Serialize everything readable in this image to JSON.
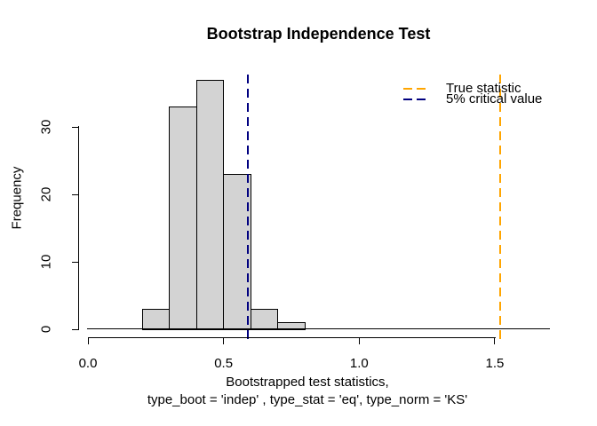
{
  "chart_data": {
    "type": "histogram",
    "title": "Bootstrap Independence Test",
    "xlabel_line1": "Bootstrapped test statistics,",
    "xlabel_line2": "type_boot = 'indep' , type_stat = 'eq', type_norm = 'KS'",
    "ylabel": "Frequency",
    "xlim": [
      0,
      1.7
    ],
    "ylim": [
      0,
      37
    ],
    "grid": false,
    "bar_fill": "#d3d3d3",
    "bar_border": "#000000",
    "bins": [
      {
        "from": 0.2,
        "to": 0.3,
        "count": 3
      },
      {
        "from": 0.3,
        "to": 0.4,
        "count": 33
      },
      {
        "from": 0.4,
        "to": 0.5,
        "count": 37
      },
      {
        "from": 0.5,
        "to": 0.6,
        "count": 23
      },
      {
        "from": 0.6,
        "to": 0.7,
        "count": 3
      },
      {
        "from": 0.7,
        "to": 0.8,
        "count": 1
      }
    ],
    "x_ticks": [
      {
        "value": 0.0,
        "label": "0.0"
      },
      {
        "value": 0.5,
        "label": "0.5"
      },
      {
        "value": 1.0,
        "label": "1.0"
      },
      {
        "value": 1.5,
        "label": "1.5"
      }
    ],
    "y_ticks": [
      {
        "value": 0,
        "label": "0"
      },
      {
        "value": 10,
        "label": "10"
      },
      {
        "value": 20,
        "label": "20"
      },
      {
        "value": 30,
        "label": "30"
      }
    ],
    "vlines": [
      {
        "name": "true-statistic-line",
        "x": 1.52,
        "color": "#ffa500",
        "style": "dashed"
      },
      {
        "name": "critical-value-line",
        "x": 0.59,
        "color": "#000080",
        "style": "dashed"
      }
    ],
    "legend": {
      "position": "top-right",
      "items": [
        {
          "label": "True statistic",
          "color": "#ffa500",
          "line_style": "dashed"
        },
        {
          "label": "5% critical value",
          "color": "#000080",
          "line_style": "dashed"
        }
      ]
    }
  }
}
